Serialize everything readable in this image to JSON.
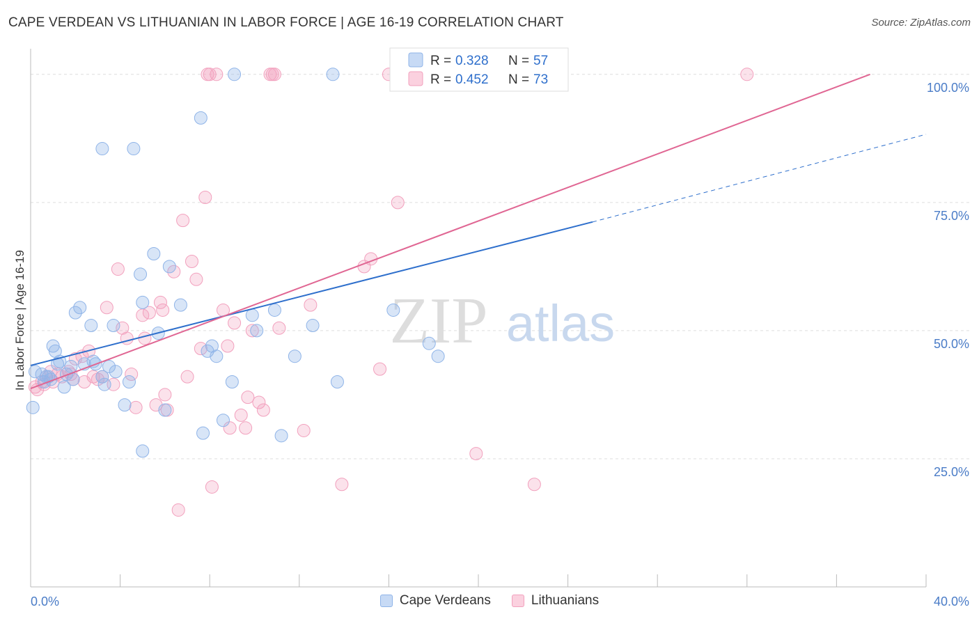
{
  "header": {
    "title": "CAPE VERDEAN VS LITHUANIAN IN LABOR FORCE | AGE 16-19 CORRELATION CHART",
    "source": "Source: ZipAtlas.com"
  },
  "watermark": {
    "part1": "ZIP",
    "part2": "atlas"
  },
  "chart_data": {
    "type": "scatter",
    "title": "CAPE VERDEAN VS LITHUANIAN IN LABOR FORCE | AGE 16-19 CORRELATION CHART",
    "xlabel": "",
    "ylabel": "In Labor Force | Age 16-19",
    "xlim": [
      0,
      40
    ],
    "ylim": [
      0,
      105
    ],
    "x_tick_labels": [
      "0.0%",
      "40.0%"
    ],
    "y_ticks": [
      25,
      50,
      75,
      100
    ],
    "y_tick_labels": [
      "25.0%",
      "50.0%",
      "75.0%",
      "100.0%"
    ],
    "grid": true,
    "legend_position": "top-center",
    "series": [
      {
        "name": "Cape Verdeans",
        "color": "#8fb4e8",
        "line_color": "#2e6fcc",
        "stats": {
          "r_label": "R =",
          "r_value": "0.328",
          "n_label": "N =",
          "n_value": "57"
        },
        "trend": {
          "x0": 0,
          "y0": 43.2,
          "x1": 25.1,
          "y1": 71.2,
          "x_ext": 40,
          "y_ext": 88.3
        },
        "points": [
          [
            0.1,
            35.0
          ],
          [
            0.5,
            41.5
          ],
          [
            0.6,
            40.0
          ],
          [
            0.8,
            41.0
          ],
          [
            0.9,
            40.5
          ],
          [
            1.0,
            47.0
          ],
          [
            1.1,
            46.0
          ],
          [
            1.3,
            44.0
          ],
          [
            1.5,
            39.0
          ],
          [
            1.6,
            41.5
          ],
          [
            1.8,
            43.0
          ],
          [
            1.9,
            40.5
          ],
          [
            2.0,
            53.5
          ],
          [
            2.2,
            54.5
          ],
          [
            2.4,
            43.5
          ],
          [
            2.7,
            51.0
          ],
          [
            2.8,
            44.0
          ],
          [
            3.2,
            41.0
          ],
          [
            3.2,
            85.5
          ],
          [
            3.3,
            39.5
          ],
          [
            3.5,
            43.0
          ],
          [
            3.7,
            51.0
          ],
          [
            3.8,
            42.0
          ],
          [
            4.2,
            35.5
          ],
          [
            4.4,
            40.0
          ],
          [
            4.6,
            85.5
          ],
          [
            4.9,
            61.0
          ],
          [
            5.0,
            55.5
          ],
          [
            5.0,
            26.5
          ],
          [
            5.5,
            65.0
          ],
          [
            5.7,
            49.5
          ],
          [
            6.0,
            34.5
          ],
          [
            6.2,
            62.5
          ],
          [
            6.7,
            55.0
          ],
          [
            7.6,
            91.5
          ],
          [
            7.7,
            30.0
          ],
          [
            7.9,
            46.0
          ],
          [
            8.1,
            47.0
          ],
          [
            8.3,
            45.0
          ],
          [
            8.6,
            32.5
          ],
          [
            9.0,
            40.0
          ],
          [
            9.1,
            100.0
          ],
          [
            9.9,
            53.0
          ],
          [
            10.1,
            50.0
          ],
          [
            10.9,
            54.0
          ],
          [
            11.2,
            29.5
          ],
          [
            11.8,
            45.0
          ],
          [
            12.6,
            51.0
          ],
          [
            13.5,
            100.0
          ],
          [
            13.7,
            40.0
          ],
          [
            16.2,
            54.0
          ],
          [
            17.8,
            47.5
          ],
          [
            18.2,
            45.0
          ],
          [
            0.2,
            42.0
          ],
          [
            0.7,
            41.0
          ],
          [
            2.9,
            43.5
          ],
          [
            1.2,
            43.5
          ]
        ]
      },
      {
        "name": "Lithuanians",
        "color": "#f2a0bd",
        "line_color": "#e06693",
        "stats": {
          "r_label": "R =",
          "r_value": "0.452",
          "n_label": "N =",
          "n_value": "73"
        },
        "trend": {
          "x0": 0,
          "y0": 38.7,
          "x1": 37.5,
          "y1": 100.0
        },
        "points": [
          [
            0.2,
            39.0
          ],
          [
            0.3,
            38.5
          ],
          [
            0.5,
            40.0
          ],
          [
            0.6,
            39.5
          ],
          [
            0.7,
            41.0
          ],
          [
            0.9,
            42.0
          ],
          [
            1.0,
            40.0
          ],
          [
            1.2,
            41.5
          ],
          [
            1.4,
            41.0
          ],
          [
            1.7,
            42.0
          ],
          [
            1.8,
            41.5
          ],
          [
            1.9,
            40.5
          ],
          [
            2.0,
            44.5
          ],
          [
            2.3,
            45.0
          ],
          [
            2.4,
            40.0
          ],
          [
            2.6,
            46.0
          ],
          [
            2.8,
            41.0
          ],
          [
            3.0,
            40.5
          ],
          [
            3.2,
            41.0
          ],
          [
            3.4,
            54.5
          ],
          [
            3.7,
            39.5
          ],
          [
            3.9,
            62.0
          ],
          [
            4.1,
            50.5
          ],
          [
            4.3,
            48.5
          ],
          [
            4.5,
            41.5
          ],
          [
            4.7,
            35.0
          ],
          [
            5.0,
            53.0
          ],
          [
            5.1,
            48.5
          ],
          [
            5.3,
            53.5
          ],
          [
            5.6,
            35.5
          ],
          [
            5.8,
            55.5
          ],
          [
            5.9,
            54.0
          ],
          [
            6.0,
            37.5
          ],
          [
            6.1,
            34.5
          ],
          [
            6.4,
            61.5
          ],
          [
            6.6,
            15.0
          ],
          [
            6.8,
            71.5
          ],
          [
            7.0,
            41.0
          ],
          [
            7.2,
            63.5
          ],
          [
            7.4,
            60.0
          ],
          [
            7.6,
            46.5
          ],
          [
            7.8,
            76.0
          ],
          [
            7.9,
            100.0
          ],
          [
            8.0,
            100.0
          ],
          [
            8.1,
            19.5
          ],
          [
            8.3,
            100.0
          ],
          [
            8.6,
            54.0
          ],
          [
            8.8,
            47.0
          ],
          [
            8.9,
            31.0
          ],
          [
            9.1,
            51.5
          ],
          [
            9.4,
            33.5
          ],
          [
            9.6,
            31.0
          ],
          [
            9.7,
            37.0
          ],
          [
            9.9,
            50.0
          ],
          [
            10.2,
            36.0
          ],
          [
            10.4,
            34.5
          ],
          [
            10.7,
            100.0
          ],
          [
            10.8,
            100.0
          ],
          [
            10.9,
            100.0
          ],
          [
            11.1,
            50.5
          ],
          [
            12.2,
            30.5
          ],
          [
            12.5,
            55.0
          ],
          [
            13.9,
            20.0
          ],
          [
            15.2,
            64.0
          ],
          [
            14.9,
            62.5
          ],
          [
            15.6,
            42.5
          ],
          [
            16.0,
            100.0
          ],
          [
            16.4,
            75.0
          ],
          [
            19.0,
            100.0
          ],
          [
            19.9,
            26.0
          ],
          [
            21.7,
            100.0
          ],
          [
            22.5,
            20.0
          ],
          [
            32.0,
            100.0
          ]
        ]
      }
    ]
  }
}
